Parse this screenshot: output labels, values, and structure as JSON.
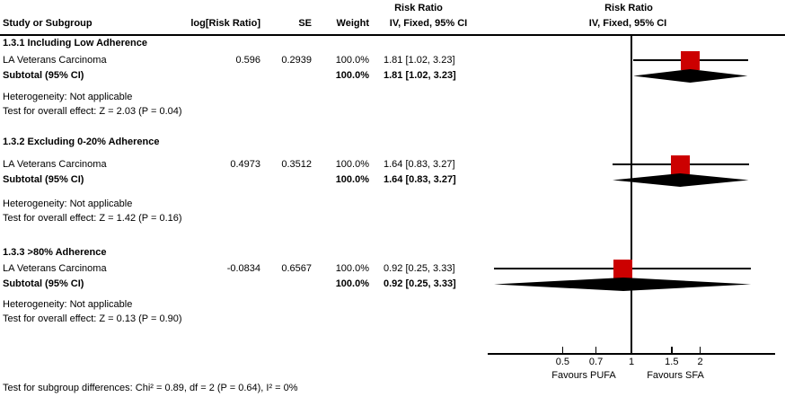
{
  "header": {
    "col_study": "Study or Subgroup",
    "col_log_rr": "log[Risk Ratio]",
    "col_se": "SE",
    "col_weight": "Weight",
    "effect_label": "Risk Ratio",
    "method_label": "IV, Fixed, 95% CI"
  },
  "footer": {
    "subgroup_differences": "Test for subgroup differences: Chi² = 0.89, df = 2 (P = 0.64), I² = 0%"
  },
  "colors": {
    "marker_red": "#CC0000",
    "ink": "#000000"
  },
  "chart_data": {
    "type": "forest",
    "effect_measure": "Risk Ratio",
    "method": "IV, Fixed, 95% CI",
    "x_scale": "log",
    "x_ticks": [
      0.5,
      0.7,
      1,
      1.5,
      2
    ],
    "x_tick_labels": [
      "0.5",
      "0.7",
      "1",
      "1.5",
      "2"
    ],
    "favours_left": "Favours PUFA",
    "favours_right": "Favours SFA",
    "groups": [
      {
        "title": "1.3.1 Including Low Adherence",
        "studies": [
          {
            "name": "LA Veterans Carcinoma",
            "log_rr": "0.596",
            "se": "0.2939",
            "weight": "100.0%",
            "ci_text": "1.81 [1.02, 3.23]",
            "rr": 1.81,
            "ci_low": 1.02,
            "ci_high": 3.23
          }
        ],
        "subtotal": {
          "label": "Subtotal (95% CI)",
          "weight": "100.0%",
          "ci_text": "1.81 [1.02, 3.23]",
          "rr": 1.81,
          "ci_low": 1.02,
          "ci_high": 3.23
        },
        "heterogeneity": "Heterogeneity: Not applicable",
        "overall_effect": "Test for overall effect: Z = 2.03 (P = 0.04)"
      },
      {
        "title": "1.3.2 Excluding 0-20% Adherence",
        "studies": [
          {
            "name": "LA Veterans Carcinoma",
            "log_rr": "0.4973",
            "se": "0.3512",
            "weight": "100.0%",
            "ci_text": "1.64 [0.83, 3.27]",
            "rr": 1.64,
            "ci_low": 0.83,
            "ci_high": 3.27
          }
        ],
        "subtotal": {
          "label": "Subtotal (95% CI)",
          "weight": "100.0%",
          "ci_text": "1.64 [0.83, 3.27]",
          "rr": 1.64,
          "ci_low": 0.83,
          "ci_high": 3.27
        },
        "heterogeneity": "Heterogeneity: Not applicable",
        "overall_effect": "Test for overall effect: Z = 1.42 (P = 0.16)"
      },
      {
        "title": "1.3.3 >80% Adherence",
        "studies": [
          {
            "name": "LA Veterans Carcinoma",
            "log_rr": "-0.0834",
            "se": "0.6567",
            "weight": "100.0%",
            "ci_text": "0.92 [0.25, 3.33]",
            "rr": 0.92,
            "ci_low": 0.25,
            "ci_high": 3.33
          }
        ],
        "subtotal": {
          "label": "Subtotal (95% CI)",
          "weight": "100.0%",
          "ci_text": "0.92 [0.25, 3.33]",
          "rr": 0.92,
          "ci_low": 0.25,
          "ci_high": 3.33
        },
        "heterogeneity": "Heterogeneity: Not applicable",
        "overall_effect": "Test for overall effect: Z = 0.13 (P = 0.90)"
      }
    ]
  }
}
